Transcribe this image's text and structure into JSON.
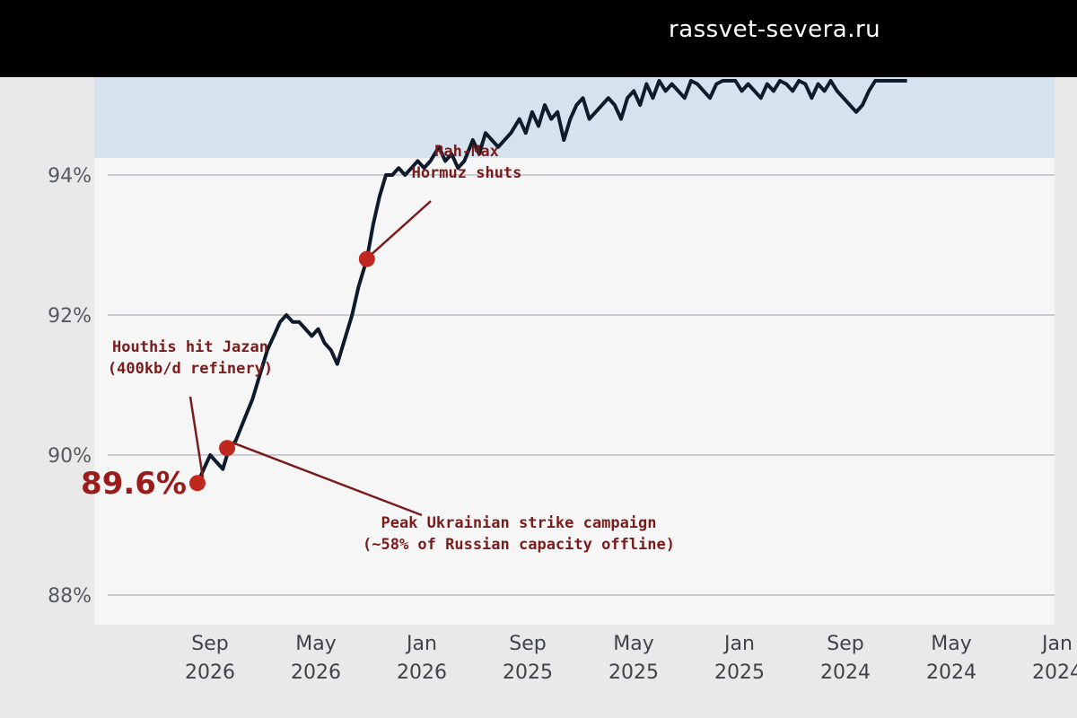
{
  "watermark": "rassvet-severa.ru",
  "colors": {
    "line": "#0f1a2b",
    "marker": "#c0271f",
    "annotation": "#7a1c1c",
    "band": "#d6e3ef"
  },
  "chart_data": {
    "type": "line",
    "mirrored": true,
    "x_ticks": [
      {
        "line1": "Sep",
        "line2": "2026"
      },
      {
        "line1": "May",
        "line2": "2026"
      },
      {
        "line1": "Jan",
        "line2": "2026"
      },
      {
        "line1": "Sep",
        "line2": "2025"
      },
      {
        "line1": "May",
        "line2": "2025"
      },
      {
        "line1": "Jan",
        "line2": "2025"
      },
      {
        "line1": "Sep",
        "line2": "2024"
      },
      {
        "line1": "May",
        "line2": "2024"
      },
      {
        "line1": "Jan",
        "line2": "2024"
      }
    ],
    "y_ticks": [
      "88%",
      "90%",
      "92%",
      "94%"
    ],
    "ylim": [
      87.5,
      95.9
    ],
    "grid": true,
    "series": [
      {
        "values": [
          [
            0.0,
            89.6
          ],
          [
            0.06,
            89.8
          ],
          [
            0.12,
            90.0
          ],
          [
            0.18,
            89.9
          ],
          [
            0.24,
            89.8
          ],
          [
            0.3,
            90.1
          ],
          [
            0.36,
            90.2
          ],
          [
            0.44,
            90.5
          ],
          [
            0.52,
            90.8
          ],
          [
            0.6,
            91.2
          ],
          [
            0.66,
            91.5
          ],
          [
            0.72,
            91.7
          ],
          [
            0.78,
            91.9
          ],
          [
            0.84,
            92.0
          ],
          [
            0.9,
            91.9
          ],
          [
            0.96,
            91.9
          ],
          [
            1.02,
            91.8
          ],
          [
            1.08,
            91.7
          ],
          [
            1.14,
            91.8
          ],
          [
            1.2,
            91.6
          ],
          [
            1.26,
            91.5
          ],
          [
            1.32,
            91.3
          ],
          [
            1.4,
            91.7
          ],
          [
            1.46,
            92.0
          ],
          [
            1.52,
            92.4
          ],
          [
            1.6,
            92.8
          ],
          [
            1.66,
            93.3
          ],
          [
            1.72,
            93.7
          ],
          [
            1.78,
            94.0
          ],
          [
            1.84,
            94.0
          ],
          [
            1.9,
            94.1
          ],
          [
            1.96,
            94.0
          ],
          [
            2.02,
            94.1
          ],
          [
            2.08,
            94.2
          ],
          [
            2.14,
            94.1
          ],
          [
            2.2,
            94.2
          ],
          [
            2.28,
            94.4
          ],
          [
            2.34,
            94.2
          ],
          [
            2.4,
            94.3
          ],
          [
            2.46,
            94.1
          ],
          [
            2.52,
            94.2
          ],
          [
            2.6,
            94.5
          ],
          [
            2.66,
            94.3
          ],
          [
            2.72,
            94.6
          ],
          [
            2.78,
            94.5
          ],
          [
            2.84,
            94.4
          ],
          [
            2.9,
            94.5
          ],
          [
            2.96,
            94.6
          ],
          [
            3.04,
            94.8
          ],
          [
            3.1,
            94.6
          ],
          [
            3.16,
            94.9
          ],
          [
            3.22,
            94.7
          ],
          [
            3.28,
            95.0
          ],
          [
            3.34,
            94.8
          ],
          [
            3.4,
            94.9
          ],
          [
            3.46,
            94.5
          ],
          [
            3.52,
            94.8
          ],
          [
            3.58,
            95.0
          ],
          [
            3.64,
            95.1
          ],
          [
            3.7,
            94.8
          ],
          [
            3.76,
            94.9
          ],
          [
            3.82,
            95.0
          ],
          [
            3.88,
            95.1
          ],
          [
            3.94,
            95.0
          ],
          [
            4.0,
            94.8
          ],
          [
            4.06,
            95.1
          ],
          [
            4.12,
            95.2
          ],
          [
            4.18,
            95.0
          ],
          [
            4.24,
            95.3
          ],
          [
            4.3,
            95.1
          ],
          [
            4.36,
            95.4
          ],
          [
            4.42,
            95.2
          ],
          [
            4.48,
            95.3
          ],
          [
            4.54,
            95.2
          ],
          [
            4.6,
            95.1
          ],
          [
            4.66,
            95.4
          ],
          [
            4.72,
            95.3
          ],
          [
            4.78,
            95.2
          ],
          [
            4.84,
            95.1
          ],
          [
            4.9,
            95.3
          ],
          [
            4.96,
            95.4
          ],
          [
            5.02,
            95.5
          ],
          [
            5.08,
            95.4
          ],
          [
            5.14,
            95.2
          ],
          [
            5.2,
            95.3
          ],
          [
            5.26,
            95.2
          ],
          [
            5.32,
            95.1
          ],
          [
            5.38,
            95.3
          ],
          [
            5.44,
            95.2
          ],
          [
            5.5,
            95.4
          ],
          [
            5.56,
            95.3
          ],
          [
            5.62,
            95.2
          ],
          [
            5.68,
            95.4
          ],
          [
            5.74,
            95.3
          ],
          [
            5.8,
            95.1
          ],
          [
            5.86,
            95.3
          ],
          [
            5.92,
            95.2
          ],
          [
            5.98,
            95.4
          ],
          [
            6.04,
            95.2
          ],
          [
            6.1,
            95.1
          ],
          [
            6.16,
            95.0
          ],
          [
            6.22,
            94.9
          ],
          [
            6.28,
            95.0
          ],
          [
            6.34,
            95.2
          ],
          [
            6.4,
            95.6
          ],
          [
            6.46,
            96.0
          ],
          [
            6.52,
            95.9
          ],
          [
            6.58,
            96.0
          ],
          [
            6.64,
            95.8
          ],
          [
            6.7,
            96.1
          ]
        ]
      }
    ],
    "markers": [
      {
        "x": 0.0,
        "y": 89.6
      },
      {
        "x": 0.28,
        "y": 90.1
      },
      {
        "x": 1.6,
        "y": 92.8
      }
    ],
    "value_label": "89.6%",
    "annotations": [
      {
        "lines": [
          "Houthis hit Jazan",
          "(400kb/d refinery)"
        ],
        "point": 0
      },
      {
        "lines": [
          "Peak Ukrainian strike campaign",
          "(~58% of Russian capacity offline)"
        ],
        "point": 1
      },
      {
        "lines": [
          "Rah-Max",
          "Hormuz shuts"
        ],
        "point": 2
      }
    ]
  }
}
